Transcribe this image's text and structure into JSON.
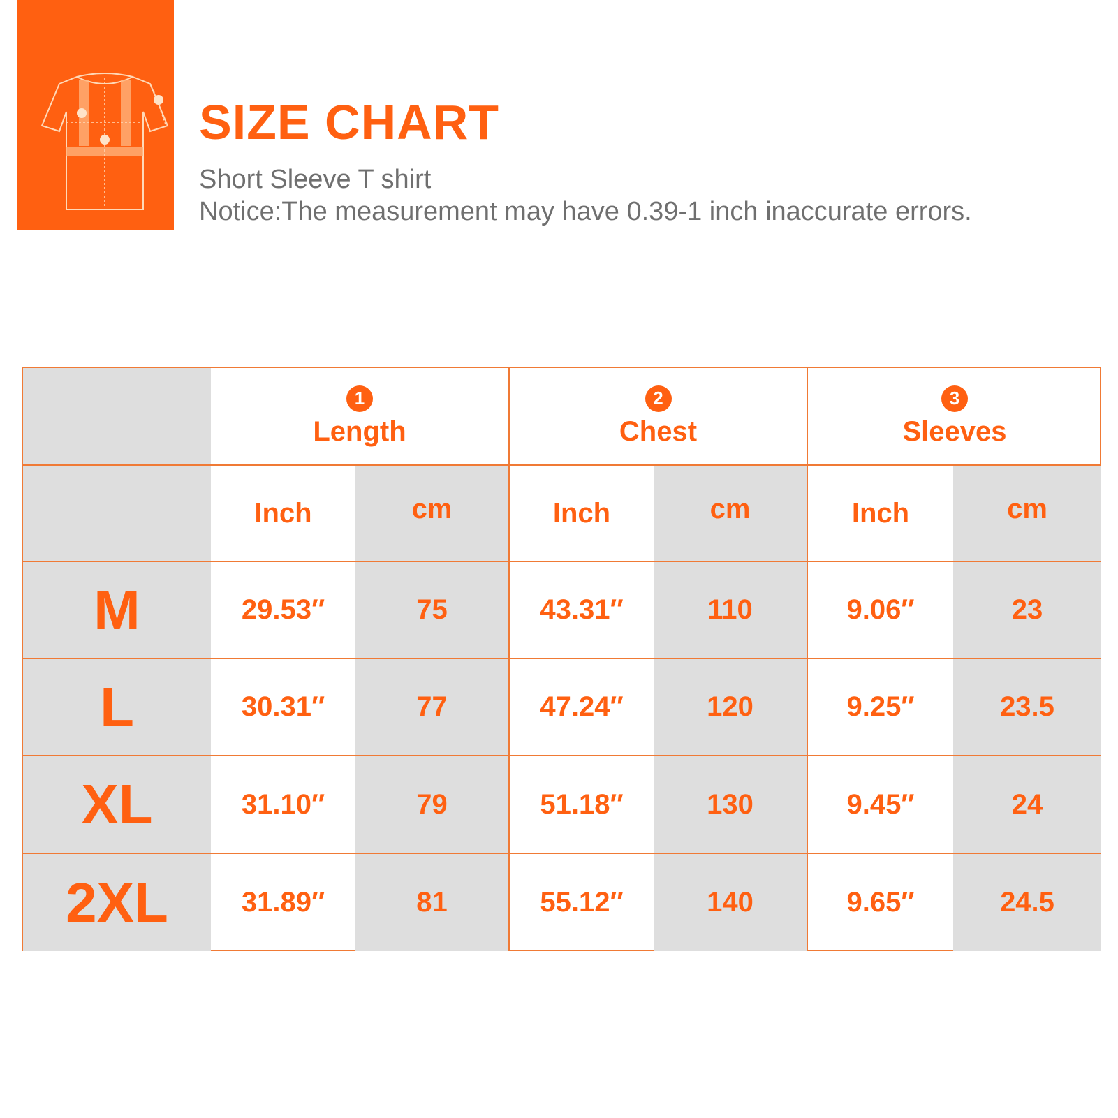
{
  "header": {
    "title": "SIZE CHART",
    "subtitle": "Short Sleeve T shirt",
    "notice": "Notice:The measurement may have 0.39-1 inch inaccurate errors."
  },
  "colors": {
    "accent": "#FF6011",
    "border": "#F07A35",
    "gray": "#DEDEDE",
    "text_gray": "#6F6F6F"
  },
  "logo": {
    "icon": "tshirt-measure-icon"
  },
  "table": {
    "measurements": [
      {
        "num": "1",
        "label": "Length"
      },
      {
        "num": "2",
        "label": "Chest"
      },
      {
        "num": "3",
        "label": "Sleeves"
      }
    ],
    "units": [
      "Inch",
      "cm",
      "Inch",
      "cm",
      "Inch",
      "cm"
    ],
    "rows": [
      {
        "size": "M",
        "values": [
          "29.53″",
          "75",
          "43.31″",
          "110",
          "9.06″",
          "23"
        ]
      },
      {
        "size": "L",
        "values": [
          "30.31″",
          "77",
          "47.24″",
          "120",
          "9.25″",
          "23.5"
        ]
      },
      {
        "size": "XL",
        "values": [
          "31.10″",
          "79",
          "51.18″",
          "130",
          "9.45″",
          "24"
        ]
      },
      {
        "size": "2XL",
        "values": [
          "31.89″",
          "81",
          "55.12″",
          "140",
          "9.65″",
          "24.5"
        ]
      }
    ]
  }
}
